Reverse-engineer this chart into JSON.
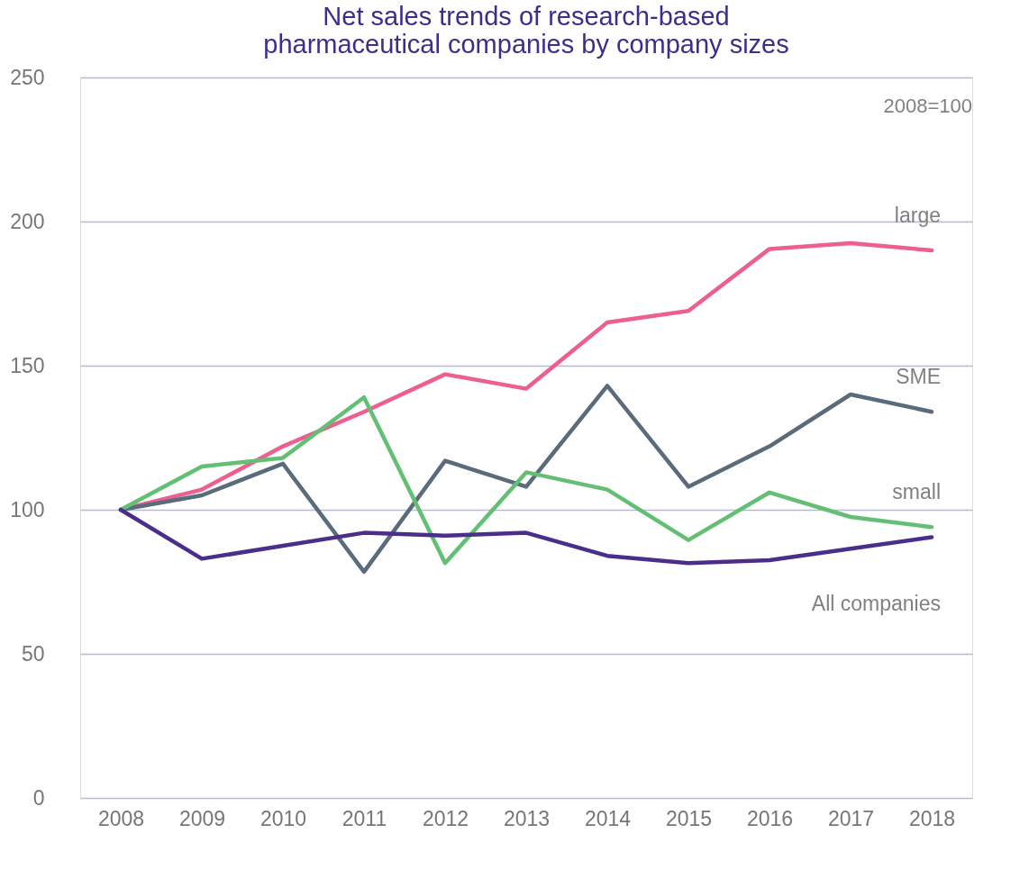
{
  "chart_data": {
    "type": "line",
    "title": "Net sales trends of research-based pharmaceutical companies by company sizes",
    "categories": [
      "2008",
      "2009",
      "2010",
      "2011",
      "2012",
      "2013",
      "2014",
      "2015",
      "2016",
      "2017",
      "2018"
    ],
    "series": [
      {
        "name": "large",
        "color": "#ec5f8f",
        "values": [
          100,
          107,
          122,
          134,
          147,
          142,
          165,
          169,
          190.5,
          192.5,
          190
        ]
      },
      {
        "name": "SME",
        "color": "#5a6b7b",
        "values": [
          100,
          105,
          116,
          78.5,
          117,
          108,
          143,
          108,
          122,
          140,
          134
        ]
      },
      {
        "name": "small",
        "color": "#63bf73",
        "values": [
          100,
          115,
          118,
          139,
          81.5,
          113,
          107,
          89.5,
          106,
          97.5,
          94
        ]
      },
      {
        "name": "All companies",
        "color": "#4b2e8c",
        "values": [
          100,
          83,
          87.5,
          92,
          91,
          92,
          84,
          81.5,
          82.5,
          86.5,
          90.5
        ]
      }
    ],
    "ylim": [
      0,
      250
    ],
    "yticks": [
      0,
      50,
      100,
      150,
      200,
      250
    ],
    "annotations": [
      "2008=100"
    ],
    "grid": "y",
    "legend": false
  }
}
